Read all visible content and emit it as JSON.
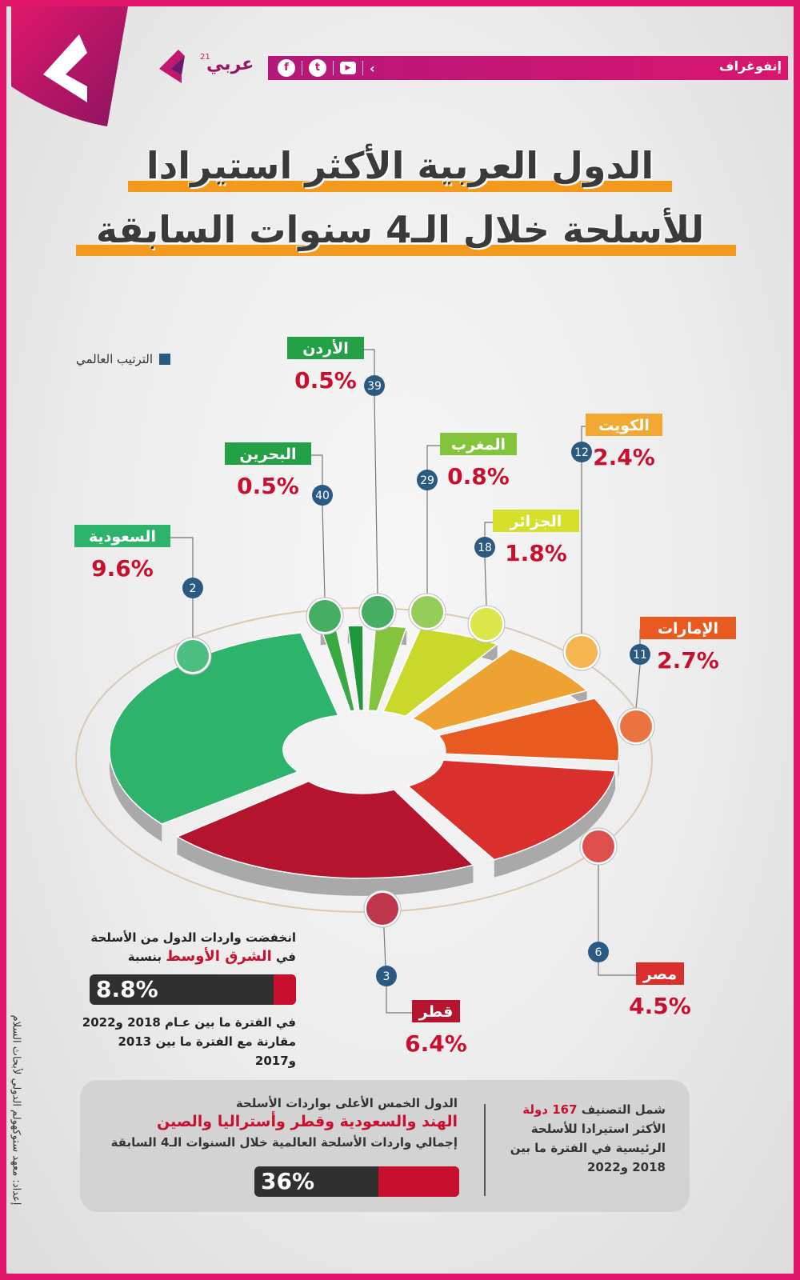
{
  "header": {
    "section_name": "إنفوغراف",
    "brand_name": "عربي",
    "brand_sup": "21",
    "social": [
      "f",
      "t",
      "▶"
    ]
  },
  "title": {
    "line1": "الدول العربية الأكثر استيرادا",
    "line2": "للأسلحة خلال الـ4 سنوات السابقة"
  },
  "legend": {
    "label": "الترتيب العالمي"
  },
  "colors": {
    "accent": "#e0176b",
    "title_bar": "#f39a1c",
    "rank_circle": "#2a5a82",
    "value_red": "#c8102e"
  },
  "chart_data": {
    "type": "pie",
    "title": "الدول العربية الأكثر استيرادا للأسلحة خلال الـ4 سنوات السابقة",
    "unit": "%",
    "categories": [
      "السعودية",
      "قطر",
      "مصر",
      "الإمارات",
      "الكويت",
      "الجزائر",
      "المغرب",
      "البحرين",
      "الأردن"
    ],
    "values": [
      9.6,
      6.4,
      4.5,
      2.7,
      2.4,
      1.8,
      0.8,
      0.5,
      0.5
    ],
    "value_labels": [
      "9.6%",
      "6.4%",
      "4.5%",
      "2.7%",
      "2.4%",
      "1.8%",
      "0.8%",
      "0.5%",
      "0.5%"
    ],
    "world_rank": [
      2,
      3,
      6,
      11,
      12,
      18,
      29,
      40,
      39
    ],
    "slice_colors": [
      "#2db36b",
      "#b5142e",
      "#d9302e",
      "#e85a1f",
      "#eea234",
      "#c9d82a",
      "#84c43d",
      "#3aa843",
      "#20963a"
    ],
    "label_colors": [
      "#2db36b",
      "#b5142e",
      "#d9302e",
      "#e85a1f",
      "#f3a832",
      "#d6e02a",
      "#84c43d",
      "#24a047",
      "#24a047"
    ]
  },
  "middle_east_note": {
    "line1": "انخفضت واردات الدول من الأسلحة",
    "prefix": "في",
    "highlight": "الشرق الأوسط",
    "suffix": "بنسبة",
    "value_label": "8.8%",
    "value": 8.8,
    "line3": "في الفترة ما بين عـام 2018 و2022",
    "line4": "مقارنة مع الفترة ما بين 2013 و2017"
  },
  "summary": {
    "left_line1": "الدول الخمس الأعلى بواردات الأسلحة",
    "left_line2": "الهند والسعودية وقطر وأستراليا والصين",
    "left_line3": "إجمالي واردات الأسلحة العالمية خلال السنوات الـ4 السابقة",
    "share_label": "36%",
    "share_value": 36,
    "right_line1_a": "شمل التصنيف",
    "right_line1_b": "167 دولة",
    "right_line2": "الأكثر استيرادا للأسلحة",
    "right_line3": "الرئيسية في الفترة ما بين",
    "right_line4": "2018 و2022"
  },
  "credit": "إعداد: معهد ستوكهولم الدولي لأبحاث السلام"
}
